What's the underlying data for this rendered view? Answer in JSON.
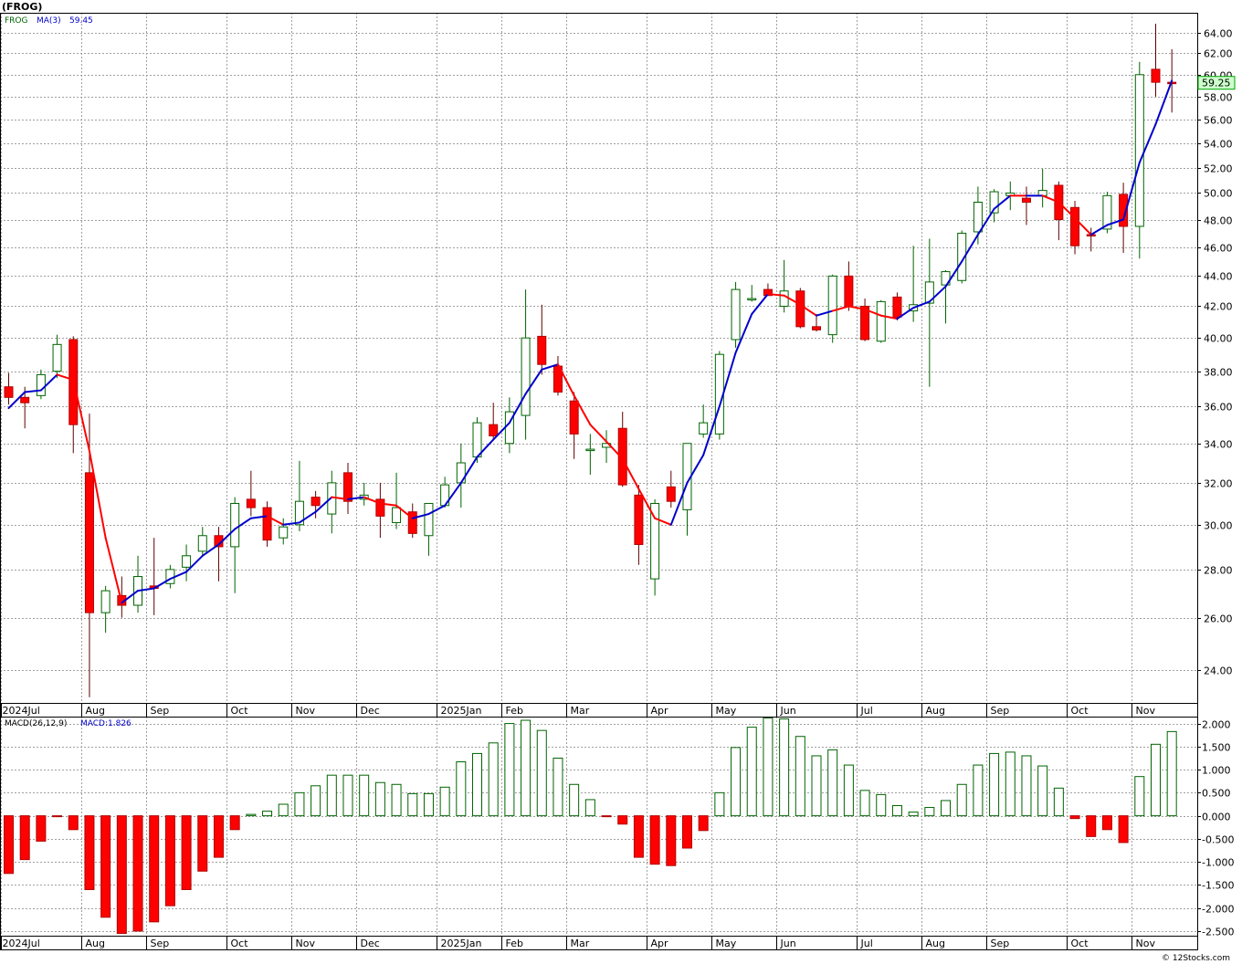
{
  "page": {
    "title": "(FROG)",
    "footer": "© 12Stocks.com"
  },
  "legend": {
    "ticker": "FROG",
    "ma_label": "MA(3)",
    "ma_value": "59.45",
    "macd_label": "MACD(26,12,9)",
    "macd_value_label": "MACD:1.826"
  },
  "colors": {
    "up": "#006400",
    "down": "#ff0000",
    "ma_up": "#0000cc",
    "ma_down": "#ff0000",
    "price_flag_bg": "#ccffcc",
    "price_flag_border": "#00a000"
  },
  "chart_data": [
    {
      "type": "candlestick",
      "title": "(FROG)",
      "scale": "log",
      "ylim": [
        22.8,
        66.0
      ],
      "yticks": [
        "24.00",
        "26.00",
        "28.00",
        "30.00",
        "32.00",
        "34.00",
        "36.00",
        "38.00",
        "40.00",
        "42.00",
        "44.00",
        "46.00",
        "48.00",
        "50.00",
        "52.00",
        "54.00",
        "56.00",
        "58.00",
        "60.00",
        "62.00",
        "64.00"
      ],
      "last_price": "59.25",
      "xticks": [
        "2024Jul",
        "Aug",
        "Sep",
        "Oct",
        "Nov",
        "Dec",
        "2025Jan",
        "Feb",
        "Mar",
        "Apr",
        "May",
        "Jun",
        "Jul",
        "Aug",
        "Sep",
        "Oct",
        "Nov"
      ],
      "xtick_weeks": [
        0,
        5,
        9,
        14,
        18,
        22,
        27,
        31,
        35,
        40,
        44,
        48,
        53,
        57,
        61,
        66,
        70
      ],
      "ohlc": [
        [
          37.1,
          37.9,
          36.1,
          36.5
        ],
        [
          36.5,
          37.1,
          34.8,
          36.2
        ],
        [
          36.6,
          38.1,
          36.4,
          37.8
        ],
        [
          38.0,
          40.2,
          37.6,
          39.6
        ],
        [
          39.9,
          40.1,
          33.5,
          35.0
        ],
        [
          32.5,
          35.6,
          23.0,
          26.2
        ],
        [
          26.2,
          27.3,
          25.4,
          27.1
        ],
        [
          26.9,
          27.7,
          26.0,
          26.5
        ],
        [
          26.5,
          28.6,
          26.2,
          27.7
        ],
        [
          27.3,
          29.4,
          26.1,
          27.2
        ],
        [
          27.4,
          28.2,
          27.2,
          28.0
        ],
        [
          28.1,
          29.1,
          27.5,
          28.6
        ],
        [
          28.8,
          29.9,
          28.6,
          29.5
        ],
        [
          29.5,
          29.9,
          27.5,
          29.0
        ],
        [
          29.0,
          31.3,
          27.0,
          31.0
        ],
        [
          31.2,
          32.6,
          30.4,
          30.8
        ],
        [
          30.8,
          31.1,
          29.0,
          29.3
        ],
        [
          29.4,
          30.3,
          29.1,
          29.9
        ],
        [
          30.0,
          33.1,
          29.7,
          31.1
        ],
        [
          31.3,
          31.6,
          30.3,
          30.9
        ],
        [
          30.5,
          32.6,
          29.6,
          32.0
        ],
        [
          32.5,
          33.0,
          30.5,
          31.1
        ],
        [
          31.2,
          32.0,
          30.9,
          31.4
        ],
        [
          31.2,
          32.0,
          29.4,
          30.4
        ],
        [
          30.1,
          32.5,
          29.8,
          30.8
        ],
        [
          30.6,
          31.0,
          29.4,
          29.6
        ],
        [
          29.5,
          30.8,
          28.6,
          31.0
        ],
        [
          30.9,
          32.3,
          30.8,
          31.9
        ],
        [
          32.0,
          34.0,
          30.8,
          33.0
        ],
        [
          33.3,
          35.4,
          33.0,
          35.1
        ],
        [
          35.0,
          36.2,
          34.2,
          34.4
        ],
        [
          34.0,
          36.5,
          33.5,
          35.7
        ],
        [
          35.5,
          43.1,
          34.2,
          40.0
        ],
        [
          40.1,
          42.1,
          37.8,
          38.4
        ],
        [
          38.3,
          38.9,
          36.6,
          36.8
        ],
        [
          36.3,
          36.8,
          33.2,
          34.5
        ],
        [
          33.7,
          34.5,
          32.4,
          33.7
        ],
        [
          33.8,
          34.7,
          33.0,
          34.0
        ],
        [
          34.8,
          35.7,
          31.8,
          31.9
        ],
        [
          31.4,
          31.9,
          28.2,
          29.1
        ],
        [
          27.6,
          31.2,
          26.9,
          31.0
        ],
        [
          31.8,
          32.6,
          30.8,
          31.1
        ],
        [
          30.7,
          34.0,
          29.5,
          34.0
        ],
        [
          34.5,
          36.1,
          34.3,
          35.1
        ],
        [
          34.5,
          39.2,
          34.2,
          39.0
        ],
        [
          39.9,
          43.6,
          39.4,
          43.1
        ],
        [
          42.5,
          43.4,
          42.3,
          42.5
        ],
        [
          43.1,
          43.5,
          42.8,
          42.7
        ],
        [
          42.0,
          45.1,
          41.6,
          43.0
        ],
        [
          43.0,
          43.2,
          40.6,
          40.7
        ],
        [
          40.7,
          41.5,
          40.4,
          40.5
        ],
        [
          40.2,
          44.1,
          39.7,
          44.0
        ],
        [
          44.0,
          45.0,
          41.7,
          42.0
        ],
        [
          42.0,
          42.5,
          39.8,
          39.9
        ],
        [
          39.8,
          42.4,
          39.7,
          42.3
        ],
        [
          42.6,
          42.9,
          41.1,
          41.3
        ],
        [
          41.7,
          46.1,
          41.0,
          42.1
        ],
        [
          42.2,
          46.6,
          37.1,
          43.6
        ],
        [
          43.4,
          44.4,
          40.9,
          44.3
        ],
        [
          43.7,
          47.2,
          43.5,
          47.0
        ],
        [
          47.1,
          50.5,
          46.2,
          49.3
        ],
        [
          48.5,
          50.3,
          47.8,
          50.1
        ],
        [
          49.8,
          50.9,
          48.7,
          50.0
        ],
        [
          49.6,
          50.5,
          47.6,
          49.3
        ],
        [
          49.8,
          51.9,
          48.9,
          50.2
        ],
        [
          50.6,
          50.9,
          46.5,
          48.0
        ],
        [
          48.9,
          49.4,
          45.5,
          46.1
        ],
        [
          46.9,
          47.4,
          45.7,
          46.8
        ],
        [
          47.3,
          50.1,
          47.0,
          49.8
        ],
        [
          49.9,
          50.8,
          45.6,
          47.5
        ],
        [
          47.5,
          61.2,
          45.2,
          60.0
        ],
        [
          60.5,
          64.9,
          58.0,
          59.3
        ],
        [
          59.3,
          62.4,
          56.6,
          59.25
        ]
      ],
      "ma3": [
        35.9,
        36.8,
        36.9,
        37.8,
        37.5,
        33.6,
        29.4,
        26.6,
        27.1,
        27.2,
        27.6,
        27.9,
        28.6,
        29.1,
        29.8,
        30.3,
        30.4,
        30.0,
        30.1,
        30.6,
        31.3,
        31.2,
        31.3,
        31.0,
        30.9,
        30.3,
        30.5,
        30.9,
        32.0,
        33.3,
        34.2,
        35.1,
        36.7,
        38.1,
        38.4,
        36.6,
        35.0,
        34.1,
        33.2,
        31.7,
        30.3,
        30.0,
        32.0,
        33.4,
        36.0,
        39.1,
        41.5,
        42.8,
        42.7,
        42.1,
        41.4,
        41.7,
        42.0,
        41.8,
        41.4,
        41.2,
        41.9,
        42.3,
        43.3,
        45.0,
        46.9,
        48.8,
        49.8,
        49.8,
        49.8,
        49.3,
        48.1,
        46.9,
        47.6,
        48.0,
        52.4,
        55.6,
        59.45
      ],
      "ma_direction_up": [
        true,
        true,
        true,
        true,
        false,
        false,
        false,
        false,
        true,
        true,
        true,
        true,
        true,
        true,
        true,
        true,
        true,
        false,
        true,
        true,
        true,
        false,
        true,
        false,
        false,
        false,
        true,
        true,
        true,
        true,
        true,
        true,
        true,
        true,
        true,
        false,
        false,
        false,
        false,
        false,
        false,
        false,
        true,
        true,
        true,
        true,
        true,
        true,
        false,
        false,
        false,
        true,
        false,
        false,
        false,
        false,
        true,
        true,
        true,
        true,
        true,
        true,
        true,
        false,
        true,
        false,
        false,
        false,
        true,
        true,
        true,
        true,
        true
      ]
    },
    {
      "type": "bar",
      "title": "MACD(26,12,9)",
      "ylim": [
        -2.6,
        2.15
      ],
      "yticks": [
        "-2.500",
        "-2.000",
        "-1.500",
        "-1.000",
        "-0.500",
        "0.000",
        "0.500",
        "1.000",
        "1.500",
        "2.000"
      ],
      "xticks": [
        "2024Jul",
        "Aug",
        "Sep",
        "Oct",
        "Nov",
        "Dec",
        "2025Jan",
        "Feb",
        "Mar",
        "Apr",
        "May",
        "Jun",
        "Jul",
        "Aug",
        "Sep",
        "Oct",
        "Nov"
      ],
      "values": [
        -1.25,
        -0.95,
        -0.55,
        -0.02,
        -0.3,
        -1.6,
        -2.2,
        -2.55,
        -2.5,
        -2.3,
        -1.95,
        -1.6,
        -1.2,
        -0.9,
        -0.3,
        0.03,
        0.1,
        0.25,
        0.5,
        0.65,
        0.88,
        0.88,
        0.88,
        0.72,
        0.68,
        0.48,
        0.48,
        0.62,
        1.17,
        1.35,
        1.58,
        2.0,
        2.07,
        1.85,
        1.25,
        0.68,
        0.35,
        -0.02,
        -0.18,
        -0.9,
        -1.05,
        -1.08,
        -0.7,
        -0.32,
        0.5,
        1.48,
        1.92,
        2.12,
        2.1,
        1.72,
        1.3,
        1.43,
        1.1,
        0.55,
        0.46,
        0.22,
        0.08,
        0.18,
        0.33,
        0.68,
        1.1,
        1.35,
        1.38,
        1.3,
        1.08,
        0.6,
        -0.06,
        -0.45,
        -0.3,
        -0.58,
        0.85,
        1.55,
        1.826
      ]
    }
  ]
}
